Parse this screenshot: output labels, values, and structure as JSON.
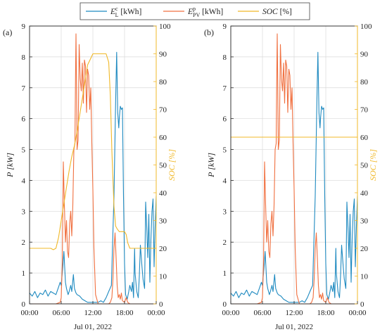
{
  "colors": {
    "ec": "#1f8ac0",
    "epv": "#f07040",
    "soc": "#f0b828",
    "grid": "#d9d9d9",
    "axis": "#222222"
  },
  "legend": {
    "placement": "top-center",
    "entries": [
      {
        "key": "ec",
        "label": "E",
        "sup": "c",
        "sub": "L",
        "unit": " [kWh]",
        "italic": false
      },
      {
        "key": "epv",
        "label": "E",
        "sup": "p",
        "sub": "PV",
        "unit": " [kWh]",
        "italic": false
      },
      {
        "key": "soc",
        "label": "SOC",
        "sup": "",
        "sub": "",
        "unit": " [%]",
        "italic": true
      }
    ]
  },
  "chart_data": [
    {
      "type": "line",
      "panel_label": "(a)",
      "xlabel": "Jul 01, 2022",
      "ylabel_left": "P [kW]",
      "ylabel_right": "SOC [%]",
      "ylim_left": [
        0,
        9
      ],
      "ylim_right": [
        0,
        100
      ],
      "xlim_hours": [
        0,
        24
      ],
      "x_ticks": [
        "00:00",
        "06:00",
        "12:00",
        "18:00",
        "00:00"
      ],
      "y_ticks_left": [
        0,
        1,
        2,
        3,
        4,
        5,
        6,
        7,
        8,
        9
      ],
      "y_ticks_right": [
        0,
        10,
        20,
        30,
        40,
        50,
        60,
        70,
        80,
        90,
        100
      ],
      "grid": true,
      "series": [
        {
          "key": "ec",
          "axis": "left",
          "x": [
            0,
            0.5,
            1,
            1.5,
            2,
            2.5,
            3,
            3.5,
            4,
            4.5,
            5,
            5.5,
            5.8,
            6,
            6.3,
            6.5,
            6.8,
            7,
            7.3,
            7.5,
            7.8,
            8,
            8.3,
            8.5,
            8.8,
            9,
            9.5,
            10,
            10.5,
            11,
            11.5,
            12,
            12.5,
            13,
            13.5,
            14,
            14.5,
            15,
            15.5,
            16,
            16.3,
            16.5,
            16.7,
            16.9,
            17,
            17.2,
            17.4,
            17.6,
            17.8,
            18,
            18.2,
            18.5,
            18.8,
            19,
            19.3,
            19.5,
            19.7,
            19.9,
            20,
            20.3,
            20.6,
            20.8,
            21,
            21.3,
            21.5,
            21.8,
            22,
            22.2,
            22.4,
            22.6,
            22.8,
            23,
            23.2,
            23.4,
            23.6,
            23.8,
            24
          ],
          "y": [
            0.35,
            0.25,
            0.4,
            0.2,
            0.35,
            0.3,
            0.45,
            0.25,
            0.4,
            0.35,
            0.3,
            0.55,
            0.7,
            0.6,
            1.2,
            1.7,
            0.7,
            0.5,
            0.3,
            0.4,
            0.6,
            0.4,
            0.95,
            0.5,
            0.35,
            0.3,
            0.25,
            0.15,
            0.1,
            0.05,
            0.05,
            0.05,
            0.05,
            0.05,
            0.1,
            0.05,
            0.2,
            0.4,
            0.6,
            3.5,
            6.5,
            8.15,
            6.2,
            5.7,
            6.0,
            6.4,
            6.3,
            6.35,
            3.5,
            1.3,
            0.3,
            0.15,
            0.4,
            0.6,
            0.4,
            0.7,
            0.2,
            1.8,
            1.0,
            0.4,
            0.2,
            0.9,
            1.9,
            1.2,
            0.8,
            0.5,
            3.3,
            2.5,
            1.5,
            2.9,
            0.7,
            2.1,
            3.0,
            3.4,
            1.2,
            2.5,
            3.5
          ]
        },
        {
          "key": "epv",
          "axis": "left",
          "x": [
            0,
            5,
            5.8,
            6,
            6.2,
            6.4,
            6.6,
            6.8,
            7,
            7.2,
            7.4,
            7.6,
            7.8,
            8,
            8.2,
            8.4,
            8.6,
            8.7,
            8.8,
            8.9,
            9,
            9.2,
            9.4,
            9.6,
            9.8,
            10,
            10.2,
            10.4,
            10.6,
            10.8,
            11,
            11.2,
            11.4,
            11.6,
            11.8,
            12,
            12.2,
            12.5,
            13,
            13.5,
            14,
            14.5,
            15,
            15.3,
            15.6,
            15.8,
            16,
            16.2,
            16.4,
            16.6,
            16.8,
            17,
            17.2,
            17.4,
            17.6,
            18,
            18.3,
            18.6,
            19,
            24
          ],
          "y": [
            0,
            0,
            0.05,
            0.2,
            1.3,
            4.6,
            3.2,
            2.0,
            2.7,
            1.7,
            1.5,
            2.6,
            3.0,
            2.2,
            3.2,
            5.0,
            5.2,
            7.3,
            8.75,
            7.0,
            5.0,
            5.3,
            8.4,
            7.3,
            6.9,
            7.8,
            6.5,
            7.9,
            7.7,
            6.2,
            7.6,
            7.4,
            6.3,
            7.0,
            5.2,
            3.7,
            1.8,
            0.3,
            0.0,
            0.0,
            0.0,
            0.0,
            0.0,
            0.05,
            0.2,
            0.8,
            1.8,
            2.3,
            1.5,
            0.6,
            0.2,
            0.3,
            0.15,
            0.35,
            0.1,
            0.05,
            0.2,
            0.05,
            0,
            0
          ]
        },
        {
          "key": "soc",
          "axis": "right",
          "x": [
            0,
            3,
            4,
            4.5,
            5,
            5.5,
            6,
            6.5,
            7,
            7.5,
            8,
            8.5,
            9,
            9.5,
            10,
            10.5,
            11,
            11.5,
            12,
            13,
            14,
            14.5,
            15,
            15.3,
            15.6,
            16,
            16.3,
            16.6,
            17,
            17.5,
            18,
            18.3,
            18.6,
            19,
            20,
            21,
            22,
            23,
            24
          ],
          "y": [
            20,
            20,
            20,
            19.5,
            20,
            24,
            30,
            36,
            42,
            48,
            53,
            57,
            62,
            68,
            74,
            80,
            86,
            88,
            90,
            90,
            90,
            90,
            87,
            75,
            55,
            35,
            28,
            27,
            26,
            26,
            26,
            25,
            22,
            20,
            20,
            20,
            20,
            20,
            20
          ]
        }
      ]
    },
    {
      "type": "line",
      "panel_label": "(b)",
      "xlabel": "Jul 01, 2022",
      "ylabel_left": "P [kW]",
      "ylabel_right": "SOC [%]",
      "ylim_left": [
        0,
        9
      ],
      "ylim_right": [
        0,
        100
      ],
      "xlim_hours": [
        0,
        24
      ],
      "x_ticks": [
        "00:00",
        "06:00",
        "12:00",
        "18:00",
        "00:00"
      ],
      "y_ticks_left": [
        0,
        1,
        2,
        3,
        4,
        5,
        6,
        7,
        8,
        9
      ],
      "y_ticks_right": [
        0,
        10,
        20,
        30,
        40,
        50,
        60,
        70,
        80,
        90,
        100
      ],
      "grid": true,
      "series": [
        {
          "key": "ec",
          "axis": "left",
          "x": [
            0,
            0.5,
            1,
            1.5,
            2,
            2.5,
            3,
            3.5,
            4,
            4.5,
            5,
            5.5,
            5.8,
            6,
            6.3,
            6.5,
            6.8,
            7,
            7.3,
            7.5,
            7.8,
            8,
            8.3,
            8.5,
            8.8,
            9,
            9.5,
            10,
            10.5,
            11,
            11.5,
            12,
            12.5,
            13,
            13.5,
            14,
            14.5,
            15,
            15.5,
            16,
            16.3,
            16.5,
            16.7,
            16.9,
            17,
            17.2,
            17.4,
            17.6,
            17.8,
            18,
            18.2,
            18.5,
            18.8,
            19,
            19.3,
            19.5,
            19.7,
            19.9,
            20,
            20.3,
            20.6,
            20.8,
            21,
            21.3,
            21.5,
            21.8,
            22,
            22.2,
            22.4,
            22.6,
            22.8,
            23,
            23.2,
            23.4,
            23.6,
            23.8,
            24
          ],
          "y": [
            0.35,
            0.25,
            0.4,
            0.2,
            0.35,
            0.3,
            0.45,
            0.25,
            0.4,
            0.35,
            0.3,
            0.55,
            0.7,
            0.6,
            1.2,
            1.7,
            0.7,
            0.5,
            0.3,
            0.4,
            0.6,
            0.4,
            0.95,
            0.5,
            0.35,
            0.3,
            0.25,
            0.15,
            0.1,
            0.05,
            0.05,
            0.05,
            0.05,
            0.05,
            0.1,
            0.05,
            0.2,
            0.4,
            0.6,
            3.5,
            6.5,
            8.15,
            6.2,
            5.7,
            6.0,
            6.4,
            6.3,
            6.35,
            3.5,
            1.3,
            0.3,
            0.15,
            0.4,
            0.6,
            0.4,
            0.7,
            0.2,
            1.8,
            1.0,
            0.4,
            0.2,
            0.9,
            1.9,
            1.2,
            0.8,
            0.5,
            3.3,
            2.5,
            1.5,
            2.9,
            0.7,
            2.1,
            3.0,
            3.4,
            1.2,
            2.5,
            3.5
          ]
        },
        {
          "key": "epv",
          "axis": "left",
          "x": [
            0,
            5,
            5.8,
            6,
            6.2,
            6.4,
            6.6,
            6.8,
            7,
            7.2,
            7.4,
            7.6,
            7.8,
            8,
            8.2,
            8.4,
            8.6,
            8.7,
            8.8,
            8.9,
            9,
            9.2,
            9.4,
            9.6,
            9.8,
            10,
            10.2,
            10.4,
            10.6,
            10.8,
            11,
            11.2,
            11.4,
            11.6,
            11.8,
            12,
            12.2,
            12.5,
            13,
            13.5,
            14,
            14.5,
            15,
            15.3,
            15.6,
            15.8,
            16,
            16.2,
            16.4,
            16.6,
            16.8,
            17,
            17.2,
            17.4,
            17.6,
            18,
            18.3,
            18.6,
            19,
            24
          ],
          "y": [
            0,
            0,
            0.05,
            0.2,
            1.3,
            4.6,
            3.2,
            2.0,
            2.7,
            1.7,
            1.5,
            2.6,
            3.0,
            2.2,
            3.2,
            5.0,
            5.2,
            7.3,
            8.75,
            7.0,
            5.0,
            5.3,
            8.4,
            7.3,
            6.9,
            7.8,
            6.5,
            7.9,
            7.7,
            6.2,
            7.6,
            7.4,
            6.3,
            7.0,
            5.2,
            3.7,
            1.8,
            0.3,
            0.0,
            0.0,
            0.0,
            0.0,
            0.0,
            0.05,
            0.2,
            0.8,
            1.8,
            2.3,
            1.5,
            0.6,
            0.2,
            0.3,
            0.15,
            0.35,
            0.1,
            0.05,
            0.2,
            0.05,
            0,
            0
          ]
        },
        {
          "key": "soc",
          "axis": "right",
          "x": [
            0,
            24
          ],
          "y": [
            60,
            60
          ]
        }
      ]
    }
  ]
}
